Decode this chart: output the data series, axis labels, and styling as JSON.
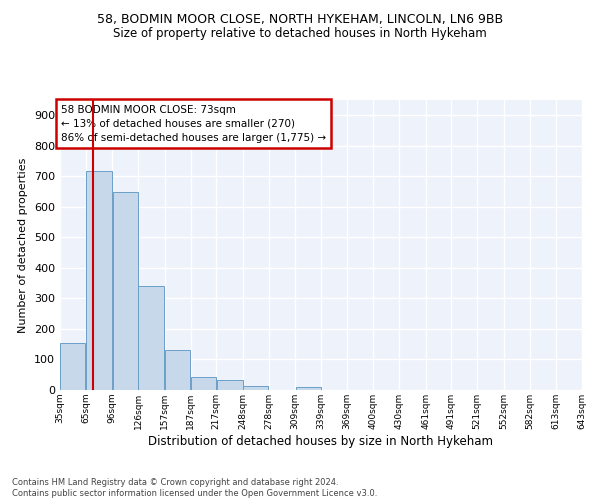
{
  "title1": "58, BODMIN MOOR CLOSE, NORTH HYKEHAM, LINCOLN, LN6 9BB",
  "title2": "Size of property relative to detached houses in North Hykeham",
  "xlabel": "Distribution of detached houses by size in North Hykeham",
  "ylabel": "Number of detached properties",
  "bar_color": "#c8d8eb",
  "bar_edge_color": "#6b9fc8",
  "background_color": "#eef2fb",
  "grid_color": "#ffffff",
  "annotation_text": "58 BODMIN MOOR CLOSE: 73sqm\n← 13% of detached houses are smaller (270)\n86% of semi-detached houses are larger (1,775) →",
  "vline_x": 73,
  "vline_color": "#cc0000",
  "footnote": "Contains HM Land Registry data © Crown copyright and database right 2024.\nContains public sector information licensed under the Open Government Licence v3.0.",
  "bin_edges": [
    35,
    65,
    96,
    126,
    157,
    187,
    217,
    248,
    278,
    309,
    339,
    369,
    400,
    430,
    461,
    491,
    521,
    552,
    582,
    613,
    643
  ],
  "bar_heights": [
    155,
    718,
    650,
    340,
    130,
    42,
    33,
    14,
    0,
    9,
    0,
    0,
    0,
    0,
    0,
    0,
    0,
    0,
    0,
    0
  ],
  "ylim": [
    0,
    950
  ],
  "yticks": [
    0,
    100,
    200,
    300,
    400,
    500,
    600,
    700,
    800,
    900
  ],
  "tick_labels": [
    "35sqm",
    "65sqm",
    "96sqm",
    "126sqm",
    "157sqm",
    "187sqm",
    "217sqm",
    "248sqm",
    "278sqm",
    "309sqm",
    "339sqm",
    "369sqm",
    "400sqm",
    "430sqm",
    "461sqm",
    "491sqm",
    "521sqm",
    "552sqm",
    "582sqm",
    "613sqm",
    "643sqm"
  ]
}
